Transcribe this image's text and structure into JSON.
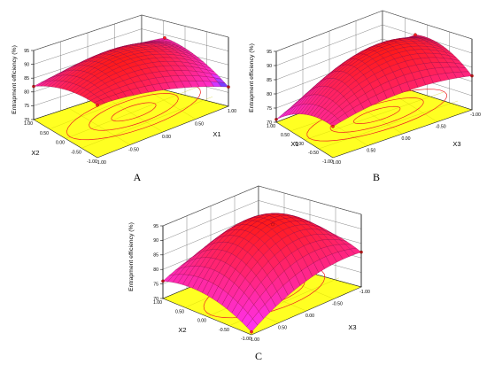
{
  "chart_data": [
    {
      "type": "surface3d",
      "panel_label": "A",
      "xlabel": "X1",
      "ylabel": "X2",
      "zlabel": "Entrapment efficiency (%)",
      "xlim": [
        -1,
        1
      ],
      "ylim": [
        -1,
        1
      ],
      "zlim": [
        70,
        95
      ],
      "x_ticks": [
        "-1.00",
        "-0.50",
        "0.00",
        "0.50",
        "1.00"
      ],
      "y_ticks": [
        "-1.00",
        "-0.50",
        "0.00",
        "0.50",
        "1.00"
      ],
      "z_ticks": [
        "70",
        "75",
        "80",
        "85",
        "90",
        "95"
      ],
      "corner_values": {
        "x-1_y-1": 89,
        "x1_y-1": 77,
        "x-1_y1": 82,
        "x1_y1": 81
      },
      "max_value": 92,
      "colors": {
        "surface_high": "#ff1a1a",
        "surface_low": "#ff33ff",
        "surface_min": "#3344ff",
        "floor": "#ffff22",
        "contour": "#ee2222"
      }
    },
    {
      "type": "surface3d",
      "panel_label": "B",
      "xlabel": "X3",
      "ylabel": "X1",
      "zlabel": "Entrapment efficiency (%)",
      "xlim": [
        -1,
        1
      ],
      "ylim": [
        -1,
        1
      ],
      "zlim": [
        70,
        95
      ],
      "x_ticks": [
        "1.00",
        "0.50",
        "0.00",
        "-0.50",
        "-1.00"
      ],
      "y_ticks": [
        "-1.00",
        "-0.50",
        "0.00",
        "0.50",
        "1.00"
      ],
      "z_ticks": [
        "70",
        "75",
        "80",
        "85",
        "90",
        "95"
      ],
      "corner_values": {
        "x1_y-1": 81,
        "x-1_y-1": 82,
        "x1_y1": 71,
        "x-1_y1": 84
      },
      "max_value": 93,
      "colors": {
        "surface_high": "#ff1a1a",
        "surface_low": "#ff33ff",
        "floor": "#ffff22",
        "contour": "#ee2222"
      }
    },
    {
      "type": "surface3d",
      "panel_label": "C",
      "xlabel": "X3",
      "ylabel": "X2",
      "zlabel": "Entrapment efficiency (%)",
      "xlim": [
        -1,
        1
      ],
      "ylim": [
        -1,
        1
      ],
      "zlim": [
        70,
        95
      ],
      "x_ticks": [
        "1.00",
        "0.50",
        "0.00",
        "-0.50",
        "-1.00"
      ],
      "y_ticks": [
        "-1.00",
        "-0.50",
        "0.00",
        "0.50",
        "1.00"
      ],
      "z_ticks": [
        "70",
        "75",
        "80",
        "85",
        "90",
        "95"
      ],
      "corner_values": {
        "x1_y-1": 71,
        "x-1_y-1": 82,
        "x1_y1": 76,
        "x-1_y1": 79
      },
      "max_value": 94,
      "colors": {
        "surface_high": "#ff1a1a",
        "surface_low": "#ff33ff",
        "floor": "#ffff22",
        "contour": "#ee2222"
      }
    }
  ]
}
